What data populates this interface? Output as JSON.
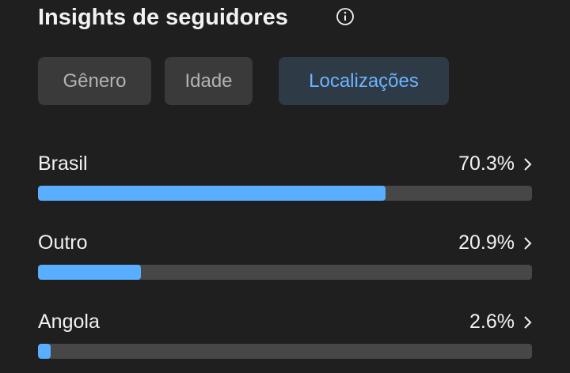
{
  "header": {
    "title": "Insights de seguidores"
  },
  "tabs": {
    "labels": [
      "Gênero",
      "Idade",
      "Localizações"
    ],
    "selected": 2
  },
  "chart_data": {
    "type": "bar",
    "orientation": "horizontal",
    "categories": [
      "Brasil",
      "Outro",
      "Angola"
    ],
    "values": [
      70.3,
      20.9,
      2.6
    ],
    "value_labels": [
      "70.3%",
      "20.9%",
      "2.6%"
    ],
    "xlim": [
      0,
      100
    ],
    "color": "#5aaeff",
    "track_color": "#474747"
  }
}
